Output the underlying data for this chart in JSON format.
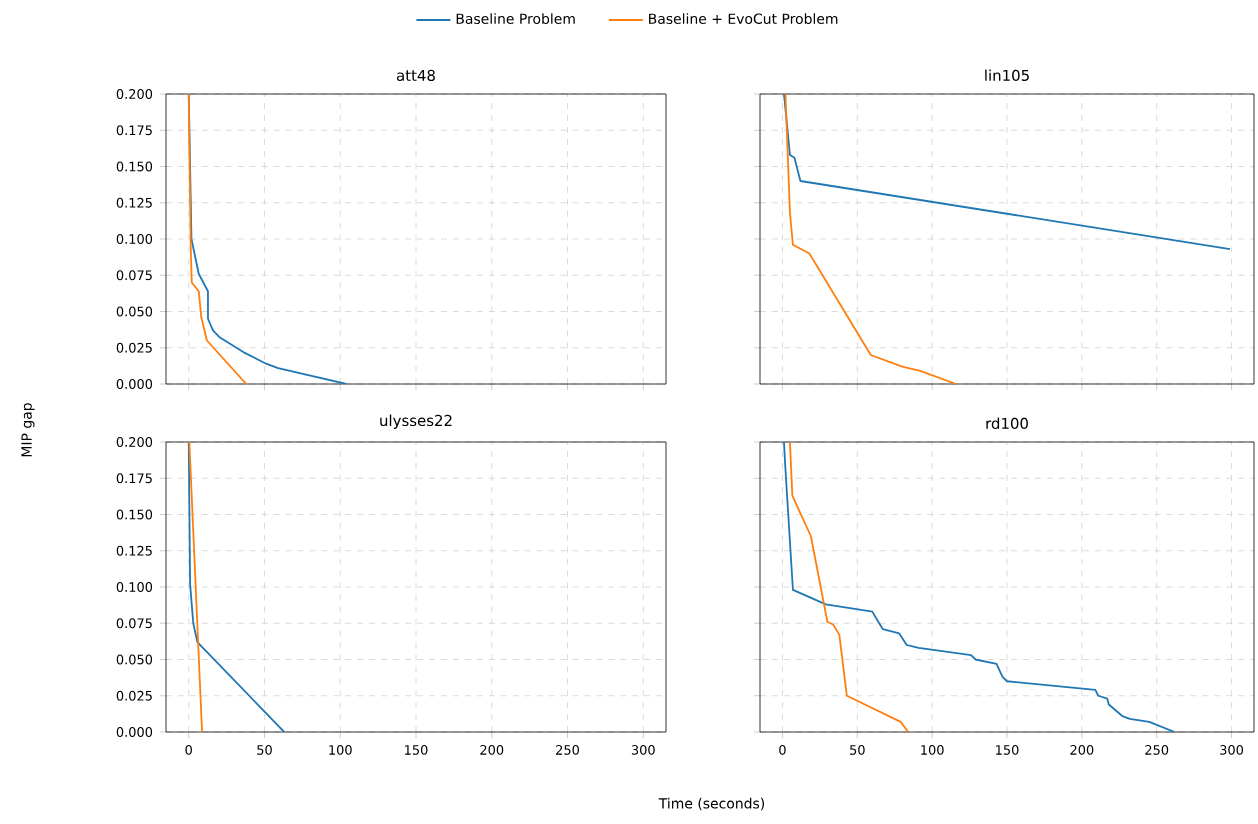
{
  "chart_data": [
    {
      "type": "line",
      "title": "att48",
      "xlabel": "Time (seconds)",
      "legend": "top",
      "grid": true,
      "tick_labels": "y",
      "xlim": [
        -15,
        315
      ],
      "ylim": [
        0,
        0.2
      ],
      "xticks": [
        0,
        50,
        100,
        150,
        200,
        250,
        300
      ],
      "yticks": [
        {
          "value": 0,
          "label": "0.000"
        },
        {
          "value": 0.025,
          "label": "0.025"
        },
        {
          "value": 0.05,
          "label": "0.050"
        },
        {
          "value": 0.075,
          "label": "0.075"
        },
        {
          "value": 0.1,
          "label": "0.100"
        },
        {
          "value": 0.125,
          "label": "0.125"
        },
        {
          "value": 0.15,
          "label": "0.150"
        },
        {
          "value": 0.175,
          "label": "0.175"
        },
        {
          "value": 0.2,
          "label": "0.200"
        }
      ],
      "series": [
        {
          "name": "Baseline Problem",
          "color": "#1f77b4",
          "x": [
            0,
            1.8,
            6.6,
            12.7,
            12.7,
            16,
            20.6,
            36,
            51,
            59,
            104
          ],
          "values": [
            0.2,
            0.1,
            0.076,
            0.064,
            0.045,
            0.037,
            0.032,
            0.022,
            0.014,
            0.011,
            0
          ]
        },
        {
          "name": "Baseline + EvoCut Problem",
          "color": "#ff7f0e",
          "x": [
            0,
            1.3,
            2,
            6.6,
            8.3,
            12,
            38
          ],
          "values": [
            0.2,
            0.095,
            0.07,
            0.064,
            0.046,
            0.03,
            0
          ]
        }
      ]
    },
    {
      "type": "line",
      "title": "lin105",
      "grid": true,
      "tick_labels": false,
      "xlim": [
        -15,
        315
      ],
      "ylim": [
        0,
        0.2
      ],
      "xticks": [
        0,
        50,
        100,
        150,
        200,
        250,
        300
      ],
      "yticks": [
        0,
        0.025,
        0.05,
        0.075,
        0.1,
        0.125,
        0.15,
        0.175,
        0.2
      ],
      "series": [
        {
          "color": "#1f77b4",
          "x": [
            1,
            5,
            8,
            10,
            12,
            299
          ],
          "values": [
            0.2,
            0.158,
            0.156,
            0.148,
            0.14,
            0.093
          ]
        },
        {
          "color": "#ff7f0e",
          "x": [
            2,
            5,
            7,
            18,
            59,
            80,
            92,
            116
          ],
          "values": [
            0.2,
            0.118,
            0.096,
            0.09,
            0.02,
            0.012,
            0.009,
            0
          ]
        }
      ]
    },
    {
      "type": "line",
      "title": "ulysses22",
      "ylabel": "MIP gap",
      "grid": true,
      "xlim": [
        -15,
        315
      ],
      "ylim": [
        0,
        0.2
      ],
      "xticks": [
        0,
        50,
        100,
        150,
        200,
        250,
        300
      ],
      "yticks": [
        {
          "value": 0,
          "label": "0.000"
        },
        {
          "value": 0.025,
          "label": "0.025"
        },
        {
          "value": 0.05,
          "label": "0.050"
        },
        {
          "value": 0.075,
          "label": "0.075"
        },
        {
          "value": 0.1,
          "label": "0.100"
        },
        {
          "value": 0.125,
          "label": "0.125"
        },
        {
          "value": 0.15,
          "label": "0.150"
        },
        {
          "value": 0.175,
          "label": "0.175"
        },
        {
          "value": 0.2,
          "label": "0.200"
        }
      ],
      "series": [
        {
          "color": "#1f77b4",
          "x": [
            0,
            0.9,
            3,
            5.7,
            63
          ],
          "values": [
            0.2,
            0.102,
            0.075,
            0.062,
            0
          ]
        },
        {
          "color": "#ff7f0e",
          "x": [
            0.4,
            8.8
          ],
          "values": [
            0.2,
            0
          ]
        }
      ]
    },
    {
      "type": "line",
      "title": "rd100",
      "grid": true,
      "tick_labels": "x",
      "xlim": [
        -15,
        315
      ],
      "ylim": [
        0,
        0.2
      ],
      "xticks": [
        0,
        50,
        100,
        150,
        200,
        250,
        300
      ],
      "yticks": [
        0,
        0.025,
        0.05,
        0.075,
        0.1,
        0.125,
        0.15,
        0.175,
        0.2
      ],
      "series": [
        {
          "color": "#1f77b4",
          "x": [
            1,
            2,
            7,
            29,
            60,
            64,
            67,
            78,
            83,
            91,
            126,
            129,
            143,
            147,
            150,
            209,
            211,
            217,
            218,
            227,
            232,
            245,
            262
          ],
          "values": [
            0.2,
            0.181,
            0.098,
            0.088,
            0.083,
            0.076,
            0.071,
            0.068,
            0.06,
            0.058,
            0.053,
            0.05,
            0.047,
            0.038,
            0.035,
            0.029,
            0.025,
            0.023,
            0.019,
            0.011,
            0.009,
            0.007,
            0
          ]
        },
        {
          "color": "#ff7f0e",
          "x": [
            5,
            6.6,
            19,
            30,
            34,
            38,
            43,
            79,
            84
          ],
          "values": [
            0.2,
            0.163,
            0.135,
            0.076,
            0.074,
            0.067,
            0.025,
            0.007,
            0
          ]
        }
      ]
    }
  ]
}
